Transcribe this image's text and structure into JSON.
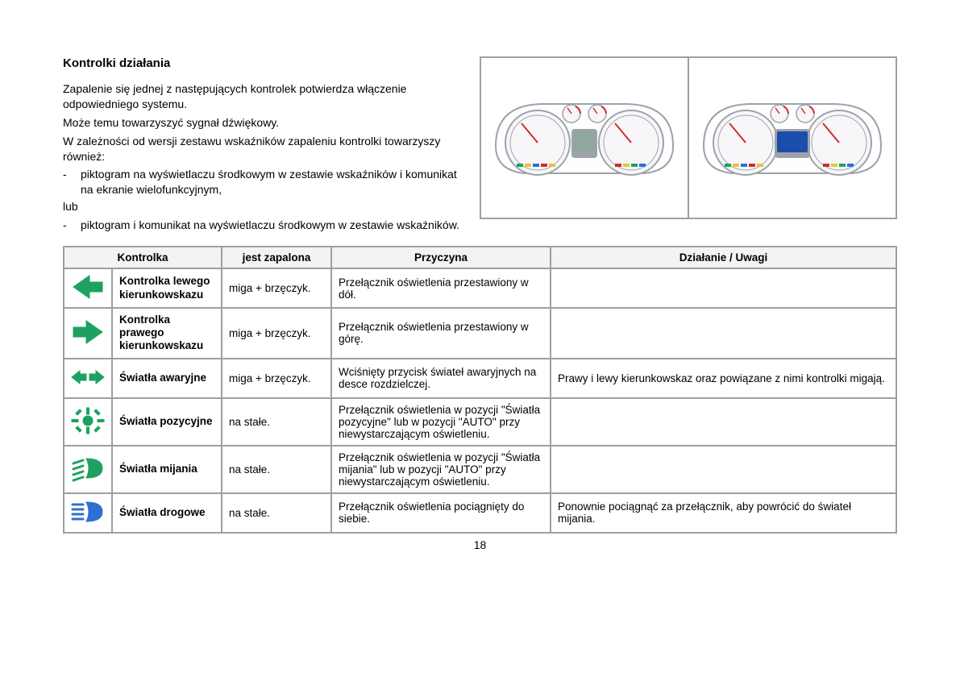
{
  "heading": "Kontrolki działania",
  "intro": {
    "p1": "Zapalenie się jednej z następujących kontrolek potwierdza włączenie odpowiedniego systemu.",
    "p2": "Może temu towarzyszyć sygnał dźwiękowy.",
    "p3": "W zależności od wersji zestawu wskaźników zapaleniu kontrolki towarzyszy również:",
    "b1": "piktogram na wyświetlaczu środkowym w zestawie wskaźników i komunikat na ekranie wielofunkcyjnym,",
    "or": "lub",
    "b2": "piktogram i komunikat na wyświetlaczu środkowym w zestawie wskaźników."
  },
  "table": {
    "headers": {
      "indicator": "Kontrolka",
      "state": "jest zapalona",
      "cause": "Przyczyna",
      "action": "Działanie / Uwagi"
    },
    "rows": [
      {
        "icon": "arrow-left",
        "icon_color": "#1ea160",
        "name": "Kontrolka lewego kierunkowskazu",
        "state": "miga + brzęczyk.",
        "cause": "Przełącznik oświetlenia przestawiony w dół.",
        "action": ""
      },
      {
        "icon": "arrow-right",
        "icon_color": "#1ea160",
        "name": "Kontrolka prawego kierunkowskazu",
        "state": "miga + brzęczyk.",
        "cause": "Przełącznik oświetlenia przestawiony w górę.",
        "action": ""
      },
      {
        "icon": "hazard",
        "icon_color": "#1ea160",
        "name": "Światła awaryjne",
        "state": "miga + brzęczyk.",
        "cause": "Wciśnięty przycisk świateł awaryjnych na desce rozdzielczej.",
        "action": "Prawy i lewy kierunkowskaz oraz powiązane z nimi kontrolki migają."
      },
      {
        "icon": "sidelight",
        "icon_color": "#1ea160",
        "name": "Światła pozycyjne",
        "state": "na stałe.",
        "cause": "Przełącznik oświetlenia w pozycji \"Światła pozycyjne\" lub w pozycji \"AUTO\" przy niewystarczającym oświetleniu.",
        "action": ""
      },
      {
        "icon": "low-beam",
        "icon_color": "#1ea160",
        "name": "Światła mijania",
        "state": "na stałe.",
        "cause": "Przełącznik oświetlenia w pozycji \"Światła mijania\" lub w pozycji \"AUTO\" przy niewystarczającym oświetleniu.",
        "action": ""
      },
      {
        "icon": "high-beam",
        "icon_color": "#2f6fd1",
        "name": "Światła drogowe",
        "state": "na stałe.",
        "cause": "Przełącznik oświetlenia pociągnięty do siebie.",
        "action": "Ponownie pociągnąć za przełącznik, aby powrócić do świateł mijania."
      }
    ]
  },
  "page_number": "18",
  "colors": {
    "border": "#9f9f9f",
    "header_bg": "#f3f3f3",
    "text": "#000000",
    "green": "#1ea160",
    "blue": "#2f6fd1"
  },
  "cluster": {
    "outline": "#9da2ab",
    "dial_fill": "#f7f7f9",
    "dial_stroke": "#9da2ab",
    "screen1": "#8ea8a0",
    "screen2": "#1a4eaa",
    "needle": "#d42a2a",
    "indicator_green": "#1ea160",
    "indicator_yellow": "#e4c23b",
    "indicator_blue": "#2f6fd1",
    "indicator_red": "#d42a2a"
  }
}
